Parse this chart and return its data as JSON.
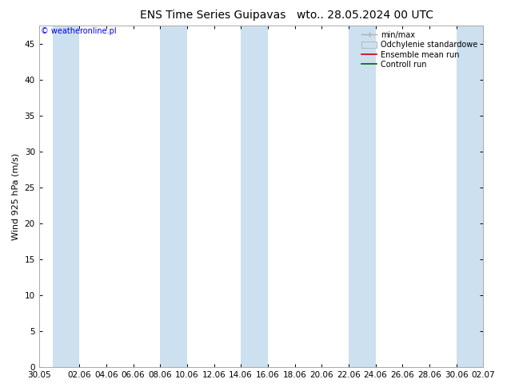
{
  "title": "ENS Time Series Guipavas",
  "title_right": "wto.. 28.05.2024 00 UTC",
  "ylabel": "Wind 925 hPa (m/s)",
  "watermark": "© weatheronline.pl",
  "ylim": [
    0,
    47.5
  ],
  "yticks": [
    0,
    5,
    10,
    15,
    20,
    25,
    30,
    35,
    40,
    45
  ],
  "x_tick_labels": [
    "30.05",
    "02.06",
    "04.06",
    "06.06",
    "08.06",
    "10.06",
    "12.06",
    "14.06",
    "16.06",
    "18.06",
    "20.06",
    "22.06",
    "24.06",
    "26.06",
    "28.06",
    "30.06",
    "02.07"
  ],
  "x_tick_days": [
    0,
    3,
    5,
    7,
    9,
    11,
    13,
    15,
    17,
    19,
    21,
    23,
    25,
    27,
    29,
    31,
    33
  ],
  "band_color": "#cce0f0",
  "background_color": "#ffffff",
  "legend_labels": [
    "min/max",
    "Odchylenie standardowe",
    "Ensemble mean run",
    "Controll run"
  ],
  "legend_minmax_color": "#b0b0b0",
  "legend_stddev_color": "#cce0f0",
  "ensemble_mean_color": "#cc0000",
  "control_run_color": "#006600",
  "title_fontsize": 10,
  "axis_fontsize": 8,
  "tick_fontsize": 7.5,
  "shaded_bands": [
    [
      1,
      3
    ],
    [
      9,
      11
    ],
    [
      15,
      17
    ],
    [
      23,
      25
    ],
    [
      31,
      33
    ]
  ]
}
